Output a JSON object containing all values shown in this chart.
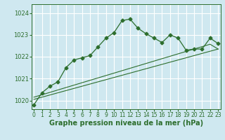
{
  "xlabel": "Graphe pression niveau de la mer (hPa)",
  "bg_color": "#cfe8f0",
  "grid_color": "#ffffff",
  "line_color": "#2d6e2d",
  "x_ticks": [
    0,
    1,
    2,
    3,
    4,
    5,
    6,
    7,
    8,
    9,
    10,
    11,
    12,
    13,
    14,
    15,
    16,
    17,
    18,
    19,
    20,
    21,
    22,
    23
  ],
  "y_ticks": [
    1020,
    1021,
    1022,
    1023,
    1024
  ],
  "ylim": [
    1019.6,
    1024.4
  ],
  "xlim": [
    -0.3,
    23.3
  ],
  "series_trend1": [
    1020.05,
    1020.15,
    1020.25,
    1020.35,
    1020.45,
    1020.55,
    1020.65,
    1020.75,
    1020.85,
    1020.95,
    1021.05,
    1021.15,
    1021.25,
    1021.35,
    1021.45,
    1021.55,
    1021.65,
    1021.75,
    1021.85,
    1021.95,
    1022.05,
    1022.15,
    1022.25,
    1022.35
  ],
  "series_trend2": [
    1020.15,
    1020.26,
    1020.37,
    1020.48,
    1020.59,
    1020.7,
    1020.81,
    1020.92,
    1021.03,
    1021.14,
    1021.25,
    1021.36,
    1021.47,
    1021.58,
    1021.69,
    1021.8,
    1021.91,
    1022.02,
    1022.13,
    1022.24,
    1022.35,
    1022.46,
    1022.57,
    1022.35
  ],
  "series_main": [
    1019.8,
    1020.35,
    1020.65,
    1020.85,
    1021.5,
    1021.85,
    1021.95,
    1022.05,
    1022.45,
    1022.85,
    1023.1,
    1023.65,
    1023.72,
    1023.3,
    1023.05,
    1022.85,
    1022.65,
    1023.0,
    1022.85,
    1022.3,
    1022.35,
    1022.35,
    1022.85,
    1022.6
  ],
  "xlabel_fontsize": 7,
  "tick_fontsize": 5.5,
  "marker_size": 2.5
}
